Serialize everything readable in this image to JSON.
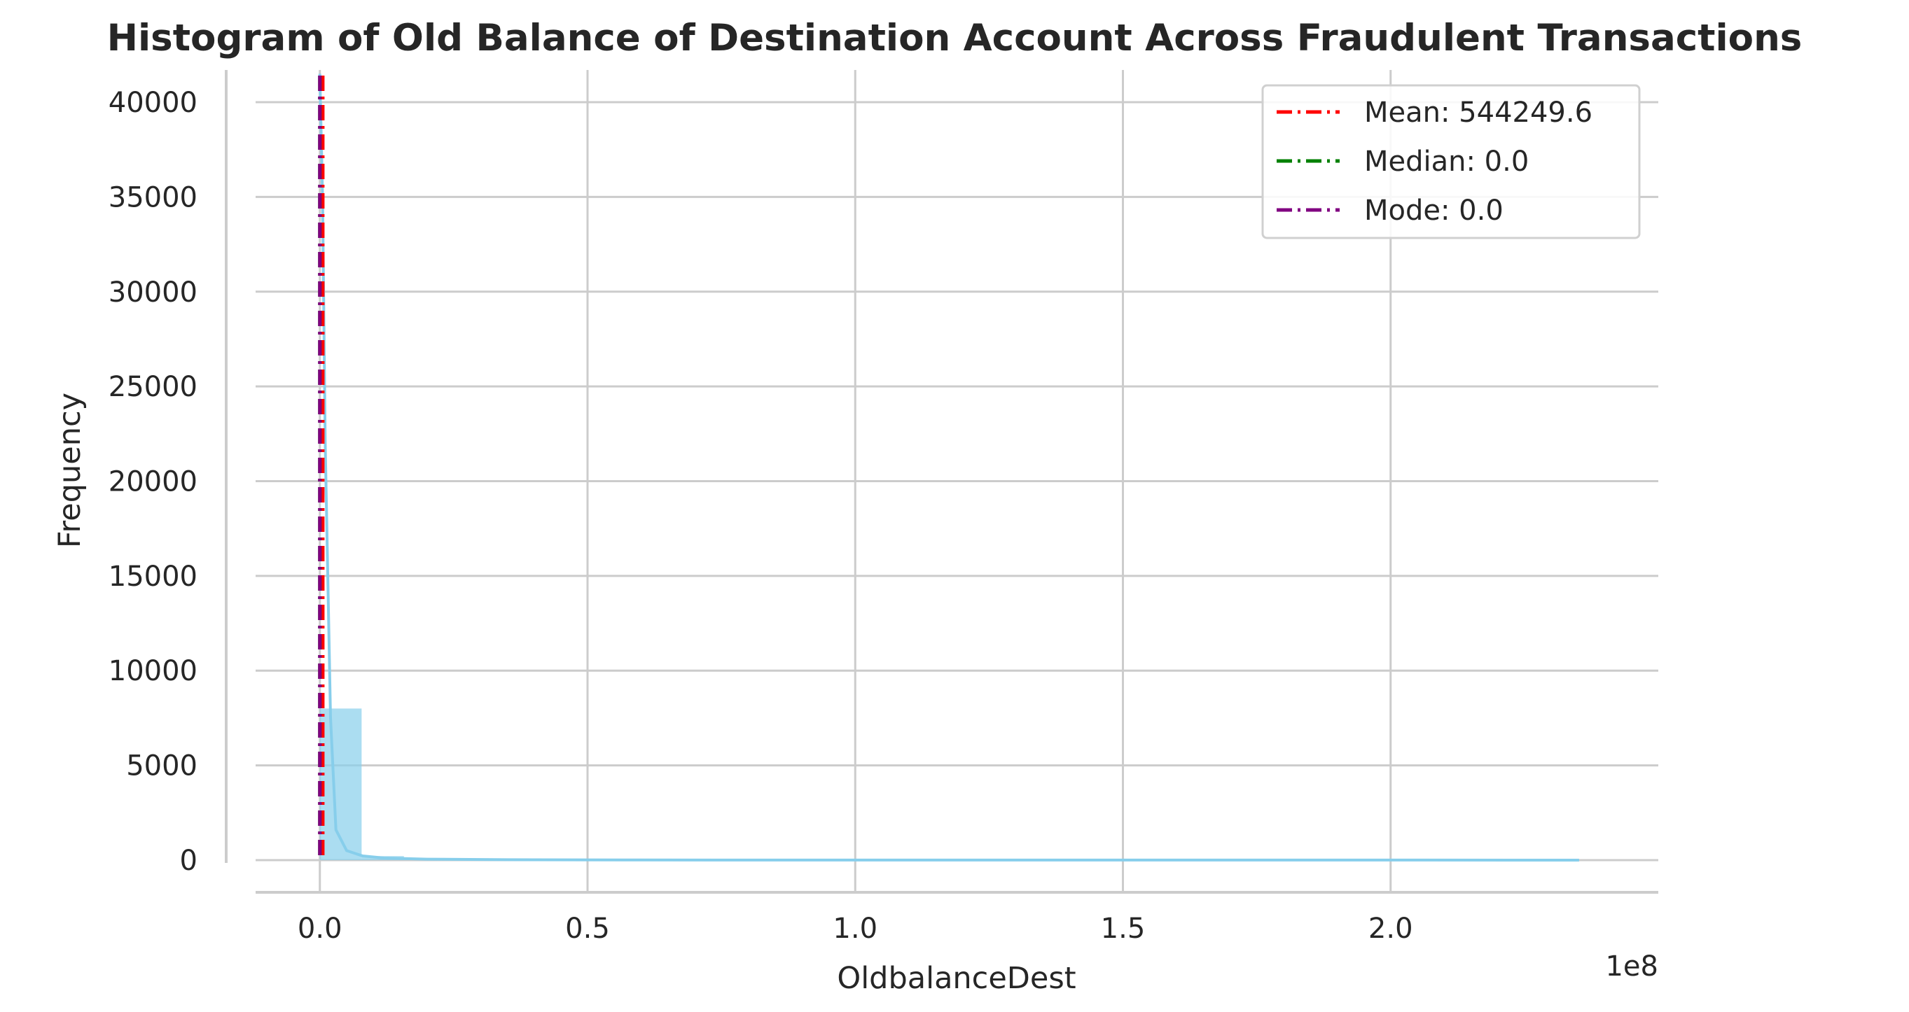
{
  "chart_data": {
    "type": "bar",
    "title": "Histogram of Old Balance of Destination Account Across Fraudulent Transactions",
    "xlabel": "OldbalanceDest",
    "ylabel": "Frequency",
    "x_offset_label": "1e8",
    "xlim": [
      -0.12,
      2.5
    ],
    "ylim": [
      -1700,
      41700
    ],
    "xticks": [
      0.0,
      0.5,
      1.0,
      1.5,
      2.0
    ],
    "xtick_labels": [
      "0.0",
      "0.5",
      "1.0",
      "1.5",
      "2.0"
    ],
    "yticks": [
      0,
      5000,
      10000,
      15000,
      20000,
      25000,
      30000,
      35000,
      40000
    ],
    "ytick_labels": [
      "0",
      "5000",
      "10000",
      "15000",
      "20000",
      "25000",
      "30000",
      "35000",
      "40000"
    ],
    "grid": true,
    "bar_color": "#87ceeb",
    "bins": [
      {
        "x0": 0.0,
        "x1": 0.078,
        "count": 8000
      },
      {
        "x0": 0.078,
        "x1": 0.157,
        "count": 210
      },
      {
        "x0": 0.157,
        "x1": 0.235,
        "count": 60
      },
      {
        "x0": 0.235,
        "x1": 0.314,
        "count": 25
      },
      {
        "x0": 0.314,
        "x1": 0.392,
        "count": 12
      },
      {
        "x0": 0.392,
        "x1": 0.47,
        "count": 6
      },
      {
        "x0": 0.47,
        "x1": 0.549,
        "count": 4
      },
      {
        "x0": 0.549,
        "x1": 0.627,
        "count": 3
      },
      {
        "x0": 0.627,
        "x1": 0.706,
        "count": 2
      },
      {
        "x0": 0.706,
        "x1": 0.784,
        "count": 2
      },
      {
        "x0": 0.784,
        "x1": 0.862,
        "count": 1
      },
      {
        "x0": 0.862,
        "x1": 0.941,
        "count": 1
      },
      {
        "x0": 0.941,
        "x1": 1.019,
        "count": 1
      },
      {
        "x0": 1.019,
        "x1": 1.098,
        "count": 1
      },
      {
        "x0": 1.098,
        "x1": 1.176,
        "count": 0
      },
      {
        "x0": 1.176,
        "x1": 1.254,
        "count": 1
      },
      {
        "x0": 1.254,
        "x1": 1.333,
        "count": 0
      },
      {
        "x0": 1.333,
        "x1": 1.411,
        "count": 0
      },
      {
        "x0": 1.411,
        "x1": 1.49,
        "count": 0
      },
      {
        "x0": 1.49,
        "x1": 1.568,
        "count": 0
      },
      {
        "x0": 1.568,
        "x1": 1.646,
        "count": 0
      },
      {
        "x0": 1.646,
        "x1": 1.725,
        "count": 0
      },
      {
        "x0": 1.725,
        "x1": 1.803,
        "count": 0
      },
      {
        "x0": 1.803,
        "x1": 1.882,
        "count": 0
      },
      {
        "x0": 1.882,
        "x1": 1.96,
        "count": 0
      },
      {
        "x0": 1.96,
        "x1": 2.038,
        "count": 0
      },
      {
        "x0": 2.038,
        "x1": 2.117,
        "count": 0
      },
      {
        "x0": 2.117,
        "x1": 2.195,
        "count": 0
      },
      {
        "x0": 2.195,
        "x1": 2.274,
        "count": 0
      },
      {
        "x0": 2.274,
        "x1": 2.352,
        "count": 1
      }
    ],
    "kde": {
      "color": "#87ceeb",
      "x": [
        0.0,
        0.005,
        0.01,
        0.02,
        0.03,
        0.05,
        0.08,
        0.12,
        0.2,
        0.35,
        0.6,
        1.0,
        1.5,
        2.0,
        2.352
      ],
      "y": [
        41500,
        35000,
        22000,
        7500,
        1600,
        500,
        220,
        110,
        50,
        20,
        8,
        4,
        2,
        1,
        0
      ]
    },
    "vlines": [
      {
        "name": "Mean: 544249.6",
        "x": 0.00544,
        "color": "#ff0000"
      },
      {
        "name": "Median: 0.0",
        "x": 0.0,
        "color": "#008000"
      },
      {
        "name": "Mode: 0.0",
        "x": 0.0,
        "color": "#800080"
      }
    ],
    "legend_position": "top-right"
  }
}
